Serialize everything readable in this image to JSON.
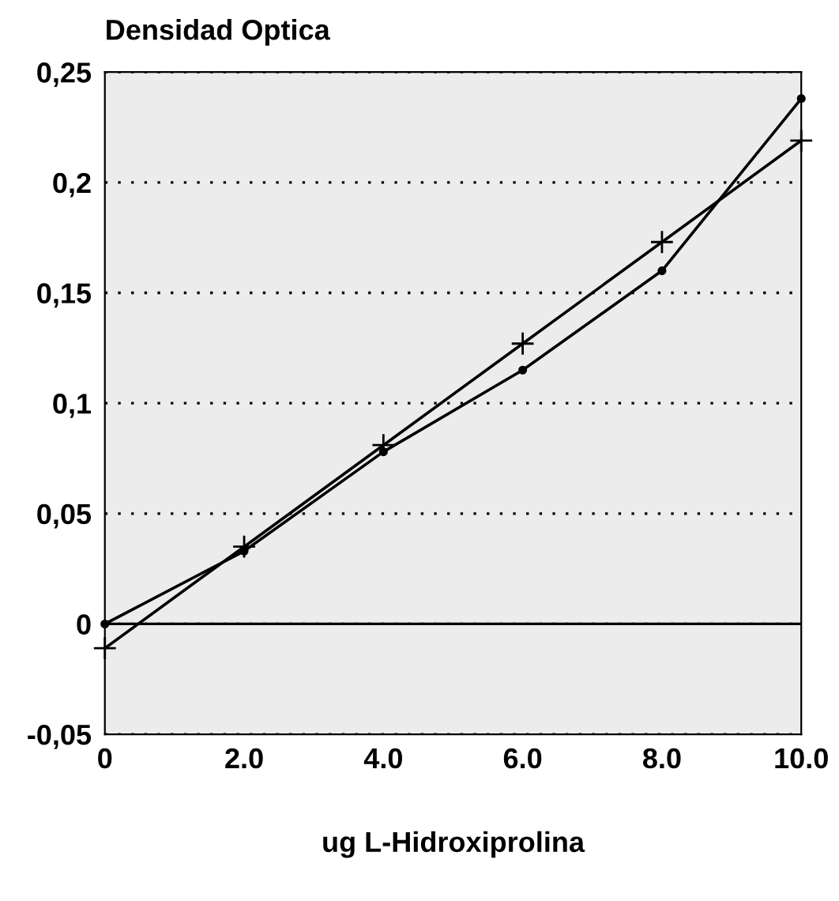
{
  "chart_data": {
    "type": "line",
    "xlabel": "ug L-Hidroxiprolina",
    "ylabel": "Densidad Optica",
    "x": [
      0,
      2,
      4,
      6,
      8,
      10
    ],
    "series": [
      {
        "color": "#000000",
        "marker": "cross",
        "values": [
          -0.011,
          0.035,
          0.081,
          0.127,
          0.173,
          0.219
        ]
      },
      {
        "color": "#000000",
        "marker": "circle",
        "values": [
          0,
          0.033,
          0.078,
          0.115,
          0.16,
          0.238
        ]
      }
    ],
    "xlim": [
      0,
      10
    ],
    "ylim": [
      -0.05,
      0.25
    ],
    "xticks": [
      0,
      {
        "value": 2,
        "label": "2.0"
      },
      {
        "value": 4,
        "label": "4.0"
      },
      {
        "value": 6,
        "label": "6.0"
      },
      {
        "value": 8,
        "label": "8.0"
      },
      {
        "value": 10,
        "label": "10.0"
      }
    ],
    "yticks": [
      {
        "value": -0.05,
        "label": "-0,05"
      },
      0,
      {
        "value": 0.05,
        "label": "0,05"
      },
      {
        "value": 0.1,
        "label": "0,1"
      },
      {
        "value": 0.15,
        "label": "0,15"
      },
      {
        "value": 0.2,
        "label": "0,2"
      },
      {
        "value": 0.25,
        "label": "0,25"
      }
    ],
    "ref_lines": [
      {
        "axis": "y",
        "value": 0,
        "color": "#000000",
        "line_style": "solid"
      }
    ],
    "grid": "y",
    "legend": false
  }
}
